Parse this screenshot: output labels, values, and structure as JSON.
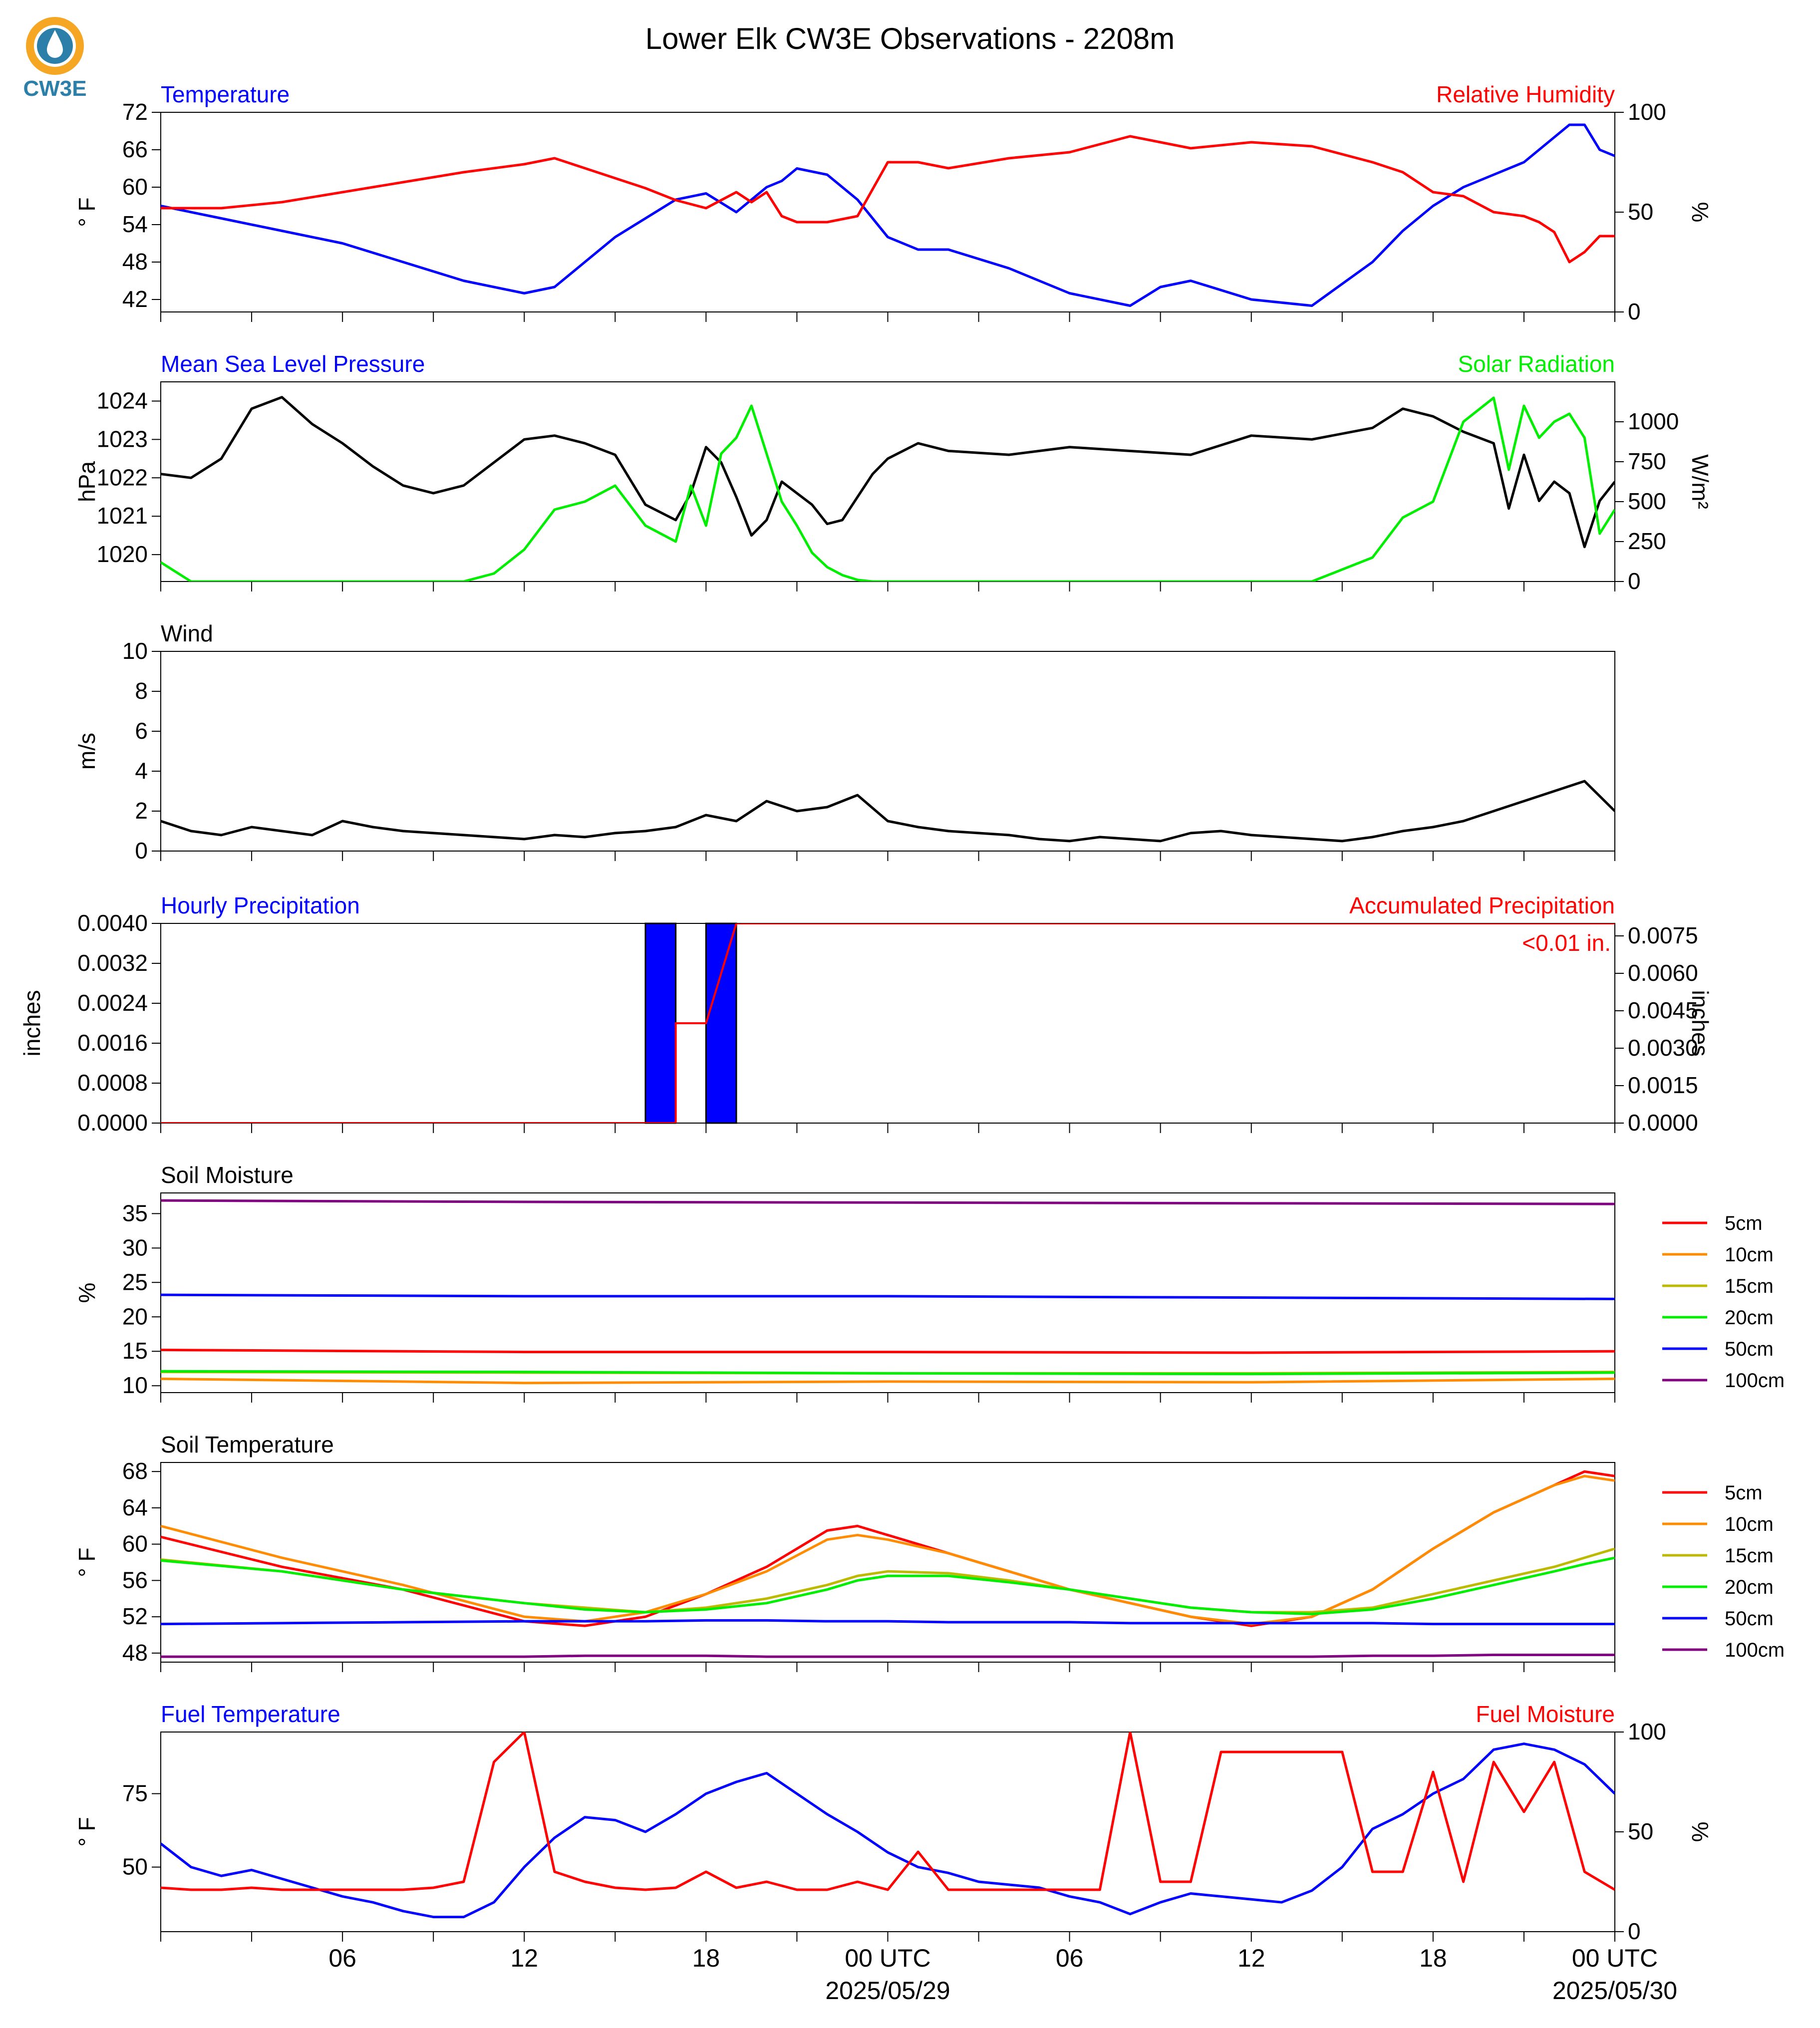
{
  "title": "Lower Elk CW3E Observations - 2208m",
  "logo": {
    "text": "CW3E",
    "colors": {
      "ring": "#F5A623",
      "wave": "#2B7FA8",
      "drop": "#FFFFFF"
    }
  },
  "x_axis": {
    "tick_labels": [
      "06",
      "12",
      "18",
      "00 UTC",
      "06",
      "12",
      "18",
      "00 UTC"
    ],
    "date_labels": [
      "2025/05/29",
      "2025/05/30"
    ]
  },
  "chart_data": [
    {
      "type": "line",
      "left_title": "Temperature",
      "right_title": "Relative Humidity",
      "ylabel": "° F",
      "y2label": "%",
      "ylim": [
        40,
        72
      ],
      "y2lim": [
        0,
        100
      ],
      "yticks": [
        "42",
        "48",
        "54",
        "60",
        "66",
        "72"
      ],
      "y2ticks": [
        "0",
        "50",
        "100"
      ],
      "x_hours": [
        0,
        2,
        4,
        6,
        8,
        10,
        12,
        13,
        14,
        15,
        16,
        17,
        18,
        19,
        19.5,
        20,
        20.5,
        21,
        22,
        23,
        24,
        25,
        26,
        28,
        30,
        32,
        33,
        34,
        36,
        38,
        40,
        41,
        42,
        43,
        44,
        45,
        45.5,
        46,
        46.5,
        47,
        47.5,
        48
      ],
      "series": [
        {
          "name": "Temperature",
          "color": "#0000FF",
          "axis": "left",
          "values": [
            57,
            55,
            53,
            51,
            48,
            45,
            43,
            44,
            48,
            52,
            55,
            58,
            59,
            56,
            58,
            60,
            61,
            63,
            62,
            58,
            52,
            50,
            50,
            47,
            43,
            41,
            44,
            45,
            42,
            41,
            48,
            53,
            57,
            60,
            62,
            64,
            66,
            68,
            70,
            70,
            66,
            65
          ]
        },
        {
          "name": "Relative Humidity",
          "color": "#FF0000",
          "axis": "right",
          "values": [
            52,
            52,
            55,
            60,
            65,
            70,
            74,
            77,
            72,
            67,
            62,
            56,
            52,
            60,
            55,
            60,
            48,
            45,
            45,
            48,
            75,
            75,
            72,
            77,
            80,
            88,
            85,
            82,
            85,
            83,
            75,
            70,
            60,
            58,
            50,
            48,
            45,
            40,
            25,
            30,
            38,
            38
          ]
        }
      ]
    },
    {
      "type": "line",
      "left_title": "Mean Sea Level Pressure",
      "right_title": "Solar Radiation",
      "ylabel": "hPa",
      "y2label": "W/m²",
      "ylim": [
        1019.3,
        1024.5
      ],
      "y2lim": [
        0,
        1250
      ],
      "yticks": [
        "1020",
        "1021",
        "1022",
        "1023",
        "1024"
      ],
      "y2ticks": [
        "0",
        "250",
        "500",
        "750",
        "1000"
      ],
      "x_hours": [
        0,
        1,
        2,
        3,
        4,
        5,
        6,
        7,
        8,
        9,
        10,
        11,
        12,
        13,
        14,
        15,
        16,
        17,
        17.5,
        18,
        18.5,
        19,
        19.5,
        20,
        20.5,
        21,
        21.5,
        22,
        22.5,
        23,
        23.5,
        24,
        25,
        26,
        28,
        30,
        32,
        34,
        36,
        38,
        40,
        41,
        42,
        43,
        44,
        44.5,
        45,
        45.5,
        46,
        46.5,
        47,
        47.5,
        48
      ],
      "series": [
        {
          "name": "Mean Sea Level Pressure",
          "color": "#000000",
          "axis": "left",
          "values": [
            1022.1,
            1022.0,
            1022.5,
            1023.8,
            1024.1,
            1023.4,
            1022.9,
            1022.3,
            1021.8,
            1021.6,
            1021.8,
            1022.4,
            1023.0,
            1023.1,
            1022.9,
            1022.6,
            1021.3,
            1020.9,
            1021.6,
            1022.8,
            1022.4,
            1021.5,
            1020.5,
            1020.9,
            1021.9,
            1021.6,
            1021.3,
            1020.8,
            1020.9,
            1021.5,
            1022.1,
            1022.5,
            1022.9,
            1022.7,
            1022.6,
            1022.8,
            1022.7,
            1022.6,
            1023.1,
            1023.0,
            1023.3,
            1023.8,
            1023.6,
            1023.2,
            1022.9,
            1021.2,
            1022.6,
            1021.4,
            1021.9,
            1021.6,
            1020.2,
            1021.4,
            1021.9
          ]
        },
        {
          "name": "Solar Radiation",
          "color": "#00EE00",
          "axis": "right",
          "values": [
            120,
            0,
            0,
            0,
            0,
            0,
            0,
            0,
            0,
            0,
            0,
            50,
            200,
            450,
            500,
            600,
            350,
            250,
            600,
            350,
            800,
            900,
            1100,
            800,
            500,
            350,
            180,
            90,
            40,
            10,
            0,
            0,
            0,
            0,
            0,
            0,
            0,
            0,
            0,
            0,
            150,
            400,
            500,
            1000,
            1150,
            700,
            1100,
            900,
            1000,
            1050,
            900,
            300,
            450
          ]
        }
      ]
    },
    {
      "type": "line",
      "left_title": "Wind",
      "ylabel": "m/s",
      "ylim": [
        0,
        10
      ],
      "yticks": [
        "0",
        "2",
        "4",
        "6",
        "8",
        "10"
      ],
      "x_hours": [
        0,
        1,
        2,
        3,
        4,
        5,
        6,
        7,
        8,
        9,
        10,
        11,
        12,
        13,
        14,
        15,
        16,
        17,
        18,
        19,
        20,
        21,
        22,
        23,
        24,
        25,
        26,
        27,
        28,
        29,
        30,
        31,
        32,
        33,
        34,
        35,
        36,
        37,
        38,
        39,
        40,
        41,
        42,
        43,
        44,
        45,
        46,
        47,
        48
      ],
      "series": [
        {
          "name": "Wind",
          "color": "#000000",
          "values": [
            1.5,
            1.0,
            0.8,
            1.2,
            1.0,
            0.8,
            1.5,
            1.2,
            1.0,
            0.9,
            0.8,
            0.7,
            0.6,
            0.8,
            0.7,
            0.9,
            1.0,
            1.2,
            1.8,
            1.5,
            2.5,
            2.0,
            2.2,
            2.8,
            1.5,
            1.2,
            1.0,
            0.9,
            0.8,
            0.6,
            0.5,
            0.7,
            0.6,
            0.5,
            0.9,
            1.0,
            0.8,
            0.7,
            0.6,
            0.5,
            0.7,
            1.0,
            1.2,
            1.5,
            2.0,
            2.5,
            3.0,
            3.5,
            2.0
          ]
        }
      ]
    },
    {
      "type": "bar",
      "left_title": "Hourly Precipitation",
      "right_title": "Accumulated Precipitation",
      "annotation": "<0.01 in.",
      "ylabel": "inches",
      "y2label": "inches",
      "ylim": [
        0,
        0.004
      ],
      "y2lim": [
        0,
        0.008
      ],
      "yticks": [
        "0.0000",
        "0.0008",
        "0.0016",
        "0.0024",
        "0.0032",
        "0.0040"
      ],
      "y2ticks": [
        "0.0000",
        "0.0015",
        "0.0030",
        "0.0045",
        "0.0060",
        "0.0075"
      ],
      "bars": [
        {
          "start_hour": 16,
          "end_hour": 17,
          "value": 0.004
        },
        {
          "start_hour": 18,
          "end_hour": 19,
          "value": 0.004
        }
      ],
      "bar_color": "#0000FF",
      "accumulated": {
        "color": "#FF0000",
        "x_hours": [
          0,
          17,
          17,
          18,
          18,
          19,
          48
        ],
        "values": [
          0,
          0,
          0.004,
          0.004,
          0.004,
          0.008,
          0.008
        ]
      }
    },
    {
      "type": "line",
      "left_title": "Soil Moisture",
      "ylabel": "%",
      "ylim": [
        9,
        38
      ],
      "yticks": [
        "10",
        "15",
        "20",
        "25",
        "30",
        "35"
      ],
      "x_hours": [
        0,
        12,
        24,
        36,
        48
      ],
      "series": [
        {
          "name": "5cm",
          "color": "#FF0000",
          "values": [
            15.2,
            14.9,
            14.9,
            14.8,
            15.0
          ]
        },
        {
          "name": "10cm",
          "color": "#FF8C00",
          "values": [
            11.0,
            10.4,
            10.6,
            10.5,
            11.0
          ]
        },
        {
          "name": "15cm",
          "color": "#BDB800",
          "values": [
            12.0,
            11.9,
            11.8,
            11.8,
            12.0
          ]
        },
        {
          "name": "20cm",
          "color": "#00EE00",
          "values": [
            12.1,
            12.0,
            11.8,
            11.7,
            11.9
          ]
        },
        {
          "name": "50cm",
          "color": "#0000FF",
          "values": [
            23.2,
            23.0,
            23.0,
            22.8,
            22.6
          ]
        },
        {
          "name": "100cm",
          "color": "#800080",
          "values": [
            36.9,
            36.7,
            36.6,
            36.5,
            36.4
          ]
        }
      ]
    },
    {
      "type": "line",
      "left_title": "Soil Temperature",
      "ylabel": "° F",
      "ylim": [
        47,
        69
      ],
      "yticks": [
        "48",
        "52",
        "56",
        "60",
        "64",
        "68"
      ],
      "x_hours": [
        0,
        4,
        8,
        12,
        14,
        16,
        18,
        20,
        22,
        23,
        24,
        26,
        28,
        30,
        32,
        34,
        36,
        38,
        40,
        42,
        44,
        46,
        47,
        48
      ],
      "series": [
        {
          "name": "5cm",
          "color": "#FF0000",
          "values": [
            60.8,
            57.5,
            55.0,
            51.5,
            51.0,
            52.0,
            54.5,
            57.5,
            61.5,
            62.0,
            61.0,
            59.0,
            57.0,
            55.0,
            53.5,
            52.0,
            51.0,
            52.0,
            55.0,
            59.5,
            63.5,
            66.5,
            68.0,
            67.5
          ]
        },
        {
          "name": "10cm",
          "color": "#FF8C00",
          "values": [
            62.0,
            58.5,
            55.5,
            52.0,
            51.5,
            52.5,
            54.5,
            57.0,
            60.5,
            61.0,
            60.5,
            59.0,
            57.0,
            55.0,
            53.5,
            52.0,
            51.2,
            52.0,
            55.0,
            59.5,
            63.5,
            66.5,
            67.5,
            67.0
          ]
        },
        {
          "name": "15cm",
          "color": "#BDB800",
          "values": [
            58.3,
            57.0,
            55.0,
            53.5,
            53.0,
            52.5,
            53.0,
            54.0,
            55.5,
            56.5,
            57.0,
            56.8,
            56.0,
            55.0,
            54.0,
            53.0,
            52.5,
            52.5,
            53.0,
            54.5,
            56.0,
            57.5,
            58.5,
            59.5
          ]
        },
        {
          "name": "20cm",
          "color": "#00EE00",
          "values": [
            58.2,
            57.0,
            55.0,
            53.5,
            52.8,
            52.5,
            52.8,
            53.5,
            55.0,
            56.0,
            56.5,
            56.5,
            55.8,
            55.0,
            54.0,
            53.0,
            52.5,
            52.3,
            52.8,
            54.0,
            55.5,
            57.0,
            57.8,
            58.5
          ]
        },
        {
          "name": "50cm",
          "color": "#0000FF",
          "values": [
            51.2,
            51.3,
            51.4,
            51.5,
            51.5,
            51.5,
            51.6,
            51.6,
            51.5,
            51.5,
            51.5,
            51.4,
            51.4,
            51.4,
            51.3,
            51.3,
            51.3,
            51.3,
            51.3,
            51.2,
            51.2,
            51.2,
            51.2,
            51.2
          ]
        },
        {
          "name": "100cm",
          "color": "#800080",
          "values": [
            47.6,
            47.6,
            47.6,
            47.6,
            47.7,
            47.7,
            47.7,
            47.6,
            47.6,
            47.6,
            47.6,
            47.6,
            47.6,
            47.6,
            47.6,
            47.6,
            47.6,
            47.6,
            47.7,
            47.7,
            47.8,
            47.8,
            47.8,
            47.8
          ]
        }
      ]
    },
    {
      "type": "line",
      "left_title": "Fuel Temperature",
      "right_title": "Fuel Moisture",
      "ylabel": "° F",
      "y2label": "%",
      "ylim": [
        28,
        96
      ],
      "y2lim": [
        0,
        100
      ],
      "yticks": [
        "50",
        "75"
      ],
      "y2ticks": [
        "0",
        "50",
        "100"
      ],
      "x_hours": [
        0,
        1,
        2,
        3,
        4,
        5,
        6,
        7,
        8,
        9,
        10,
        11,
        12,
        13,
        14,
        15,
        16,
        17,
        18,
        19,
        20,
        21,
        22,
        23,
        24,
        25,
        26,
        27,
        28,
        29,
        30,
        31,
        32,
        33,
        34,
        35,
        36,
        37,
        38,
        39,
        40,
        41,
        42,
        43,
        44,
        45,
        46,
        47,
        48
      ],
      "series": [
        {
          "name": "Fuel Temperature",
          "color": "#0000FF",
          "axis": "left",
          "values": [
            58,
            50,
            47,
            49,
            46,
            43,
            40,
            38,
            35,
            33,
            33,
            38,
            50,
            60,
            67,
            66,
            62,
            68,
            75,
            79,
            82,
            75,
            68,
            62,
            55,
            50,
            48,
            45,
            44,
            43,
            40,
            38,
            34,
            38,
            41,
            40,
            39,
            38,
            42,
            50,
            63,
            68,
            75,
            80,
            90,
            92,
            90,
            85,
            75
          ]
        },
        {
          "name": "Fuel Moisture",
          "color": "#FF0000",
          "axis": "right",
          "values": [
            22,
            21,
            21,
            22,
            21,
            21,
            21,
            21,
            21,
            22,
            25,
            85,
            100,
            30,
            25,
            22,
            21,
            22,
            30,
            22,
            25,
            21,
            21,
            25,
            21,
            40,
            21,
            21,
            21,
            21,
            21,
            21,
            100,
            25,
            25,
            90,
            90,
            90,
            90,
            90,
            30,
            30,
            80,
            25,
            85,
            60,
            85,
            30,
            21
          ]
        }
      ]
    }
  ]
}
